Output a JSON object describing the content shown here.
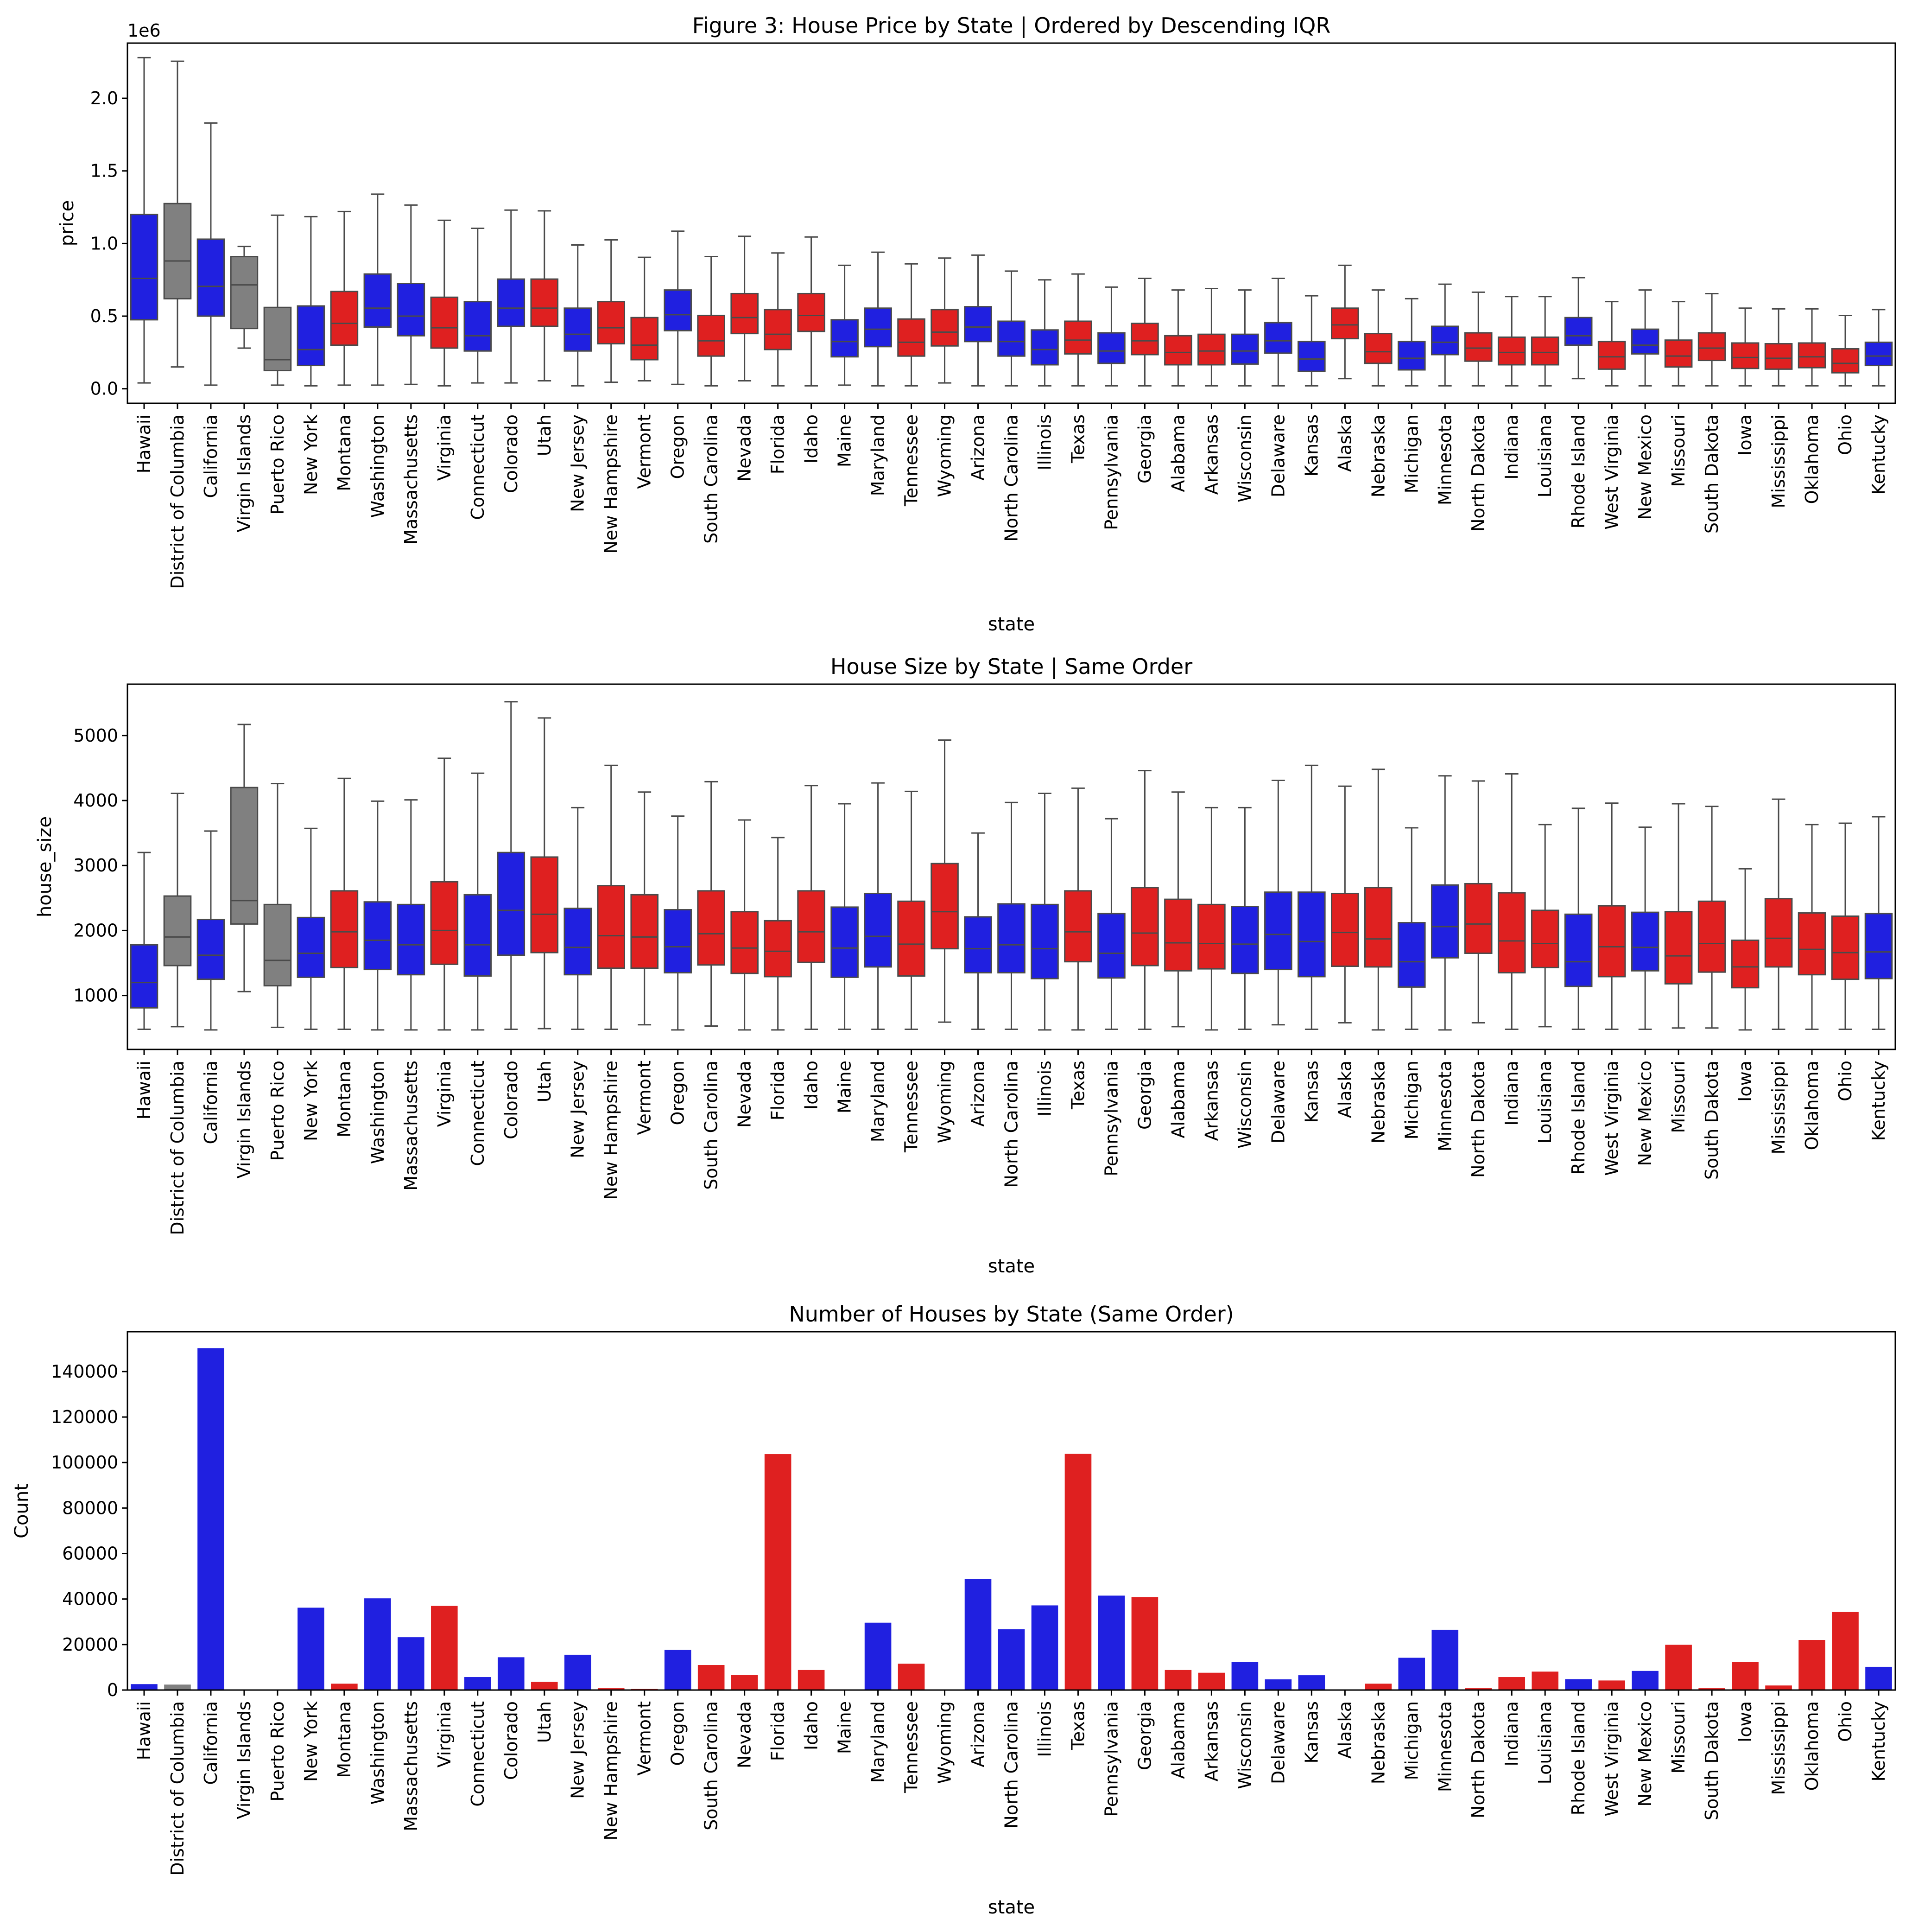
{
  "colors": {
    "blue": "#2020e0",
    "red": "#df2020",
    "gray": "#808080",
    "box_edge": "#4a4a4a"
  },
  "chart_data": [
    {
      "type": "box",
      "title": "Figure 3: House Price by State | Ordered by Descending IQR",
      "xlabel": "state",
      "ylabel": "price",
      "offset_label": "1e6",
      "ylim": [
        -100000,
        2380000
      ],
      "yticks": [
        0,
        500000,
        1000000,
        1500000,
        2000000
      ],
      "ytick_labels": [
        "0.0",
        "0.5",
        "1.0",
        "1.5",
        "2.0"
      ],
      "grid": false,
      "categories": [
        "Hawaii",
        "District of Columbia",
        "California",
        "Virgin Islands",
        "Puerto Rico",
        "New York",
        "Montana",
        "Washington",
        "Massachusetts",
        "Virginia",
        "Connecticut",
        "Colorado",
        "Utah",
        "New Jersey",
        "New Hampshire",
        "Vermont",
        "Oregon",
        "South Carolina",
        "Nevada",
        "Florida",
        "Idaho",
        "Maine",
        "Maryland",
        "Tennessee",
        "Wyoming",
        "Arizona",
        "North Carolina",
        "Illinois",
        "Texas",
        "Pennsylvania",
        "Georgia",
        "Alabama",
        "Arkansas",
        "Wisconsin",
        "Delaware",
        "Kansas",
        "Alaska",
        "Nebraska",
        "Michigan",
        "Minnesota",
        "North Dakota",
        "Indiana",
        "Louisiana",
        "Rhode Island",
        "West Virginia",
        "New Mexico",
        "Missouri",
        "South Dakota",
        "Iowa",
        "Mississippi",
        "Oklahoma",
        "Ohio",
        "Kentucky"
      ],
      "colors": [
        "blue",
        "gray",
        "blue",
        "gray",
        "gray",
        "blue",
        "red",
        "blue",
        "blue",
        "red",
        "blue",
        "blue",
        "red",
        "blue",
        "red",
        "red",
        "blue",
        "red",
        "red",
        "red",
        "red",
        "blue",
        "blue",
        "red",
        "red",
        "blue",
        "blue",
        "blue",
        "red",
        "blue",
        "red",
        "red",
        "red",
        "blue",
        "blue",
        "blue",
        "red",
        "red",
        "blue",
        "blue",
        "red",
        "red",
        "red",
        "blue",
        "red",
        "blue",
        "red",
        "red",
        "red",
        "red",
        "red",
        "red",
        "blue"
      ],
      "boxes": [
        {
          "wlo": 40000,
          "q1": 475000,
          "med": 760000,
          "q3": 1200000,
          "whi": 2280000
        },
        {
          "wlo": 150000,
          "q1": 620000,
          "med": 880000,
          "q3": 1275000,
          "whi": 2255000
        },
        {
          "wlo": 25000,
          "q1": 500000,
          "med": 705000,
          "q3": 1030000,
          "whi": 1830000
        },
        {
          "wlo": 280000,
          "q1": 415000,
          "med": 715000,
          "q3": 910000,
          "whi": 980000
        },
        {
          "wlo": 25000,
          "q1": 125000,
          "med": 200000,
          "q3": 560000,
          "whi": 1195000
        },
        {
          "wlo": 20000,
          "q1": 160000,
          "med": 270000,
          "q3": 570000,
          "whi": 1185000
        },
        {
          "wlo": 25000,
          "q1": 300000,
          "med": 450000,
          "q3": 670000,
          "whi": 1220000
        },
        {
          "wlo": 25000,
          "q1": 425000,
          "med": 555000,
          "q3": 790000,
          "whi": 1340000
        },
        {
          "wlo": 30000,
          "q1": 365000,
          "med": 500000,
          "q3": 725000,
          "whi": 1265000
        },
        {
          "wlo": 20000,
          "q1": 280000,
          "med": 420000,
          "q3": 630000,
          "whi": 1160000
        },
        {
          "wlo": 40000,
          "q1": 260000,
          "med": 365000,
          "q3": 600000,
          "whi": 1105000
        },
        {
          "wlo": 40000,
          "q1": 430000,
          "med": 555000,
          "q3": 755000,
          "whi": 1230000
        },
        {
          "wlo": 55000,
          "q1": 430000,
          "med": 555000,
          "q3": 755000,
          "whi": 1225000
        },
        {
          "wlo": 20000,
          "q1": 260000,
          "med": 375000,
          "q3": 555000,
          "whi": 990000
        },
        {
          "wlo": 45000,
          "q1": 310000,
          "med": 420000,
          "q3": 600000,
          "whi": 1025000
        },
        {
          "wlo": 55000,
          "q1": 200000,
          "med": 300000,
          "q3": 490000,
          "whi": 905000
        },
        {
          "wlo": 30000,
          "q1": 400000,
          "med": 510000,
          "q3": 680000,
          "whi": 1085000
        },
        {
          "wlo": 20000,
          "q1": 225000,
          "med": 330000,
          "q3": 505000,
          "whi": 910000
        },
        {
          "wlo": 55000,
          "q1": 380000,
          "med": 490000,
          "q3": 655000,
          "whi": 1050000
        },
        {
          "wlo": 20000,
          "q1": 270000,
          "med": 375000,
          "q3": 545000,
          "whi": 935000
        },
        {
          "wlo": 20000,
          "q1": 395000,
          "med": 505000,
          "q3": 655000,
          "whi": 1045000
        },
        {
          "wlo": 25000,
          "q1": 220000,
          "med": 325000,
          "q3": 475000,
          "whi": 850000
        },
        {
          "wlo": 20000,
          "q1": 290000,
          "med": 410000,
          "q3": 555000,
          "whi": 940000
        },
        {
          "wlo": 20000,
          "q1": 225000,
          "med": 320000,
          "q3": 480000,
          "whi": 860000
        },
        {
          "wlo": 40000,
          "q1": 295000,
          "med": 390000,
          "q3": 545000,
          "whi": 900000
        },
        {
          "wlo": 20000,
          "q1": 325000,
          "med": 425000,
          "q3": 565000,
          "whi": 920000
        },
        {
          "wlo": 20000,
          "q1": 225000,
          "med": 325000,
          "q3": 465000,
          "whi": 810000
        },
        {
          "wlo": 20000,
          "q1": 165000,
          "med": 270000,
          "q3": 405000,
          "whi": 750000
        },
        {
          "wlo": 20000,
          "q1": 240000,
          "med": 335000,
          "q3": 465000,
          "whi": 790000
        },
        {
          "wlo": 20000,
          "q1": 175000,
          "med": 260000,
          "q3": 385000,
          "whi": 700000
        },
        {
          "wlo": 20000,
          "q1": 235000,
          "med": 330000,
          "q3": 450000,
          "whi": 760000
        },
        {
          "wlo": 20000,
          "q1": 165000,
          "med": 250000,
          "q3": 365000,
          "whi": 680000
        },
        {
          "wlo": 20000,
          "q1": 165000,
          "med": 260000,
          "q3": 375000,
          "whi": 690000
        },
        {
          "wlo": 20000,
          "q1": 170000,
          "med": 260000,
          "q3": 375000,
          "whi": 680000
        },
        {
          "wlo": 20000,
          "q1": 245000,
          "med": 330000,
          "q3": 455000,
          "whi": 760000
        },
        {
          "wlo": 20000,
          "q1": 120000,
          "med": 205000,
          "q3": 325000,
          "whi": 640000
        },
        {
          "wlo": 70000,
          "q1": 345000,
          "med": 440000,
          "q3": 555000,
          "whi": 850000
        },
        {
          "wlo": 20000,
          "q1": 175000,
          "med": 255000,
          "q3": 380000,
          "whi": 680000
        },
        {
          "wlo": 20000,
          "q1": 130000,
          "med": 210000,
          "q3": 325000,
          "whi": 620000
        },
        {
          "wlo": 20000,
          "q1": 235000,
          "med": 320000,
          "q3": 430000,
          "whi": 720000
        },
        {
          "wlo": 20000,
          "q1": 190000,
          "med": 280000,
          "q3": 385000,
          "whi": 665000
        },
        {
          "wlo": 20000,
          "q1": 165000,
          "med": 250000,
          "q3": 355000,
          "whi": 635000
        },
        {
          "wlo": 20000,
          "q1": 165000,
          "med": 250000,
          "q3": 355000,
          "whi": 635000
        },
        {
          "wlo": 70000,
          "q1": 300000,
          "med": 365000,
          "q3": 490000,
          "whi": 765000
        },
        {
          "wlo": 20000,
          "q1": 135000,
          "med": 220000,
          "q3": 325000,
          "whi": 600000
        },
        {
          "wlo": 20000,
          "q1": 240000,
          "med": 300000,
          "q3": 410000,
          "whi": 680000
        },
        {
          "wlo": 20000,
          "q1": 150000,
          "med": 225000,
          "q3": 335000,
          "whi": 600000
        },
        {
          "wlo": 20000,
          "q1": 195000,
          "med": 280000,
          "q3": 385000,
          "whi": 655000
        },
        {
          "wlo": 20000,
          "q1": 140000,
          "med": 215000,
          "q3": 315000,
          "whi": 555000
        },
        {
          "wlo": 20000,
          "q1": 135000,
          "med": 210000,
          "q3": 310000,
          "whi": 550000
        },
        {
          "wlo": 20000,
          "q1": 145000,
          "med": 220000,
          "q3": 315000,
          "whi": 550000
        },
        {
          "wlo": 20000,
          "q1": 110000,
          "med": 175000,
          "q3": 275000,
          "whi": 505000
        },
        {
          "wlo": 20000,
          "q1": 160000,
          "med": 225000,
          "q3": 320000,
          "whi": 545000
        }
      ]
    },
    {
      "type": "box",
      "title": "House Size by State | Same Order",
      "xlabel": "state",
      "ylabel": "house_size",
      "ylim": [
        170,
        5790
      ],
      "yticks": [
        1000,
        2000,
        3000,
        4000,
        5000
      ],
      "ytick_labels": [
        "1000",
        "2000",
        "3000",
        "4000",
        "5000"
      ],
      "grid": false,
      "categories_ref": "same as Figure 3 order",
      "boxes": [
        {
          "wlo": 480,
          "q1": 810,
          "med": 1200,
          "q3": 1780,
          "whi": 3200
        },
        {
          "wlo": 520,
          "q1": 1460,
          "med": 1900,
          "q3": 2530,
          "whi": 4110
        },
        {
          "wlo": 470,
          "q1": 1250,
          "med": 1620,
          "q3": 2170,
          "whi": 3530
        },
        {
          "wlo": 1060,
          "q1": 2100,
          "med": 2460,
          "q3": 4200,
          "whi": 5170
        },
        {
          "wlo": 510,
          "q1": 1150,
          "med": 1540,
          "q3": 2400,
          "whi": 4260
        },
        {
          "wlo": 480,
          "q1": 1280,
          "med": 1650,
          "q3": 2200,
          "whi": 3570
        },
        {
          "wlo": 480,
          "q1": 1430,
          "med": 1980,
          "q3": 2610,
          "whi": 4340
        },
        {
          "wlo": 470,
          "q1": 1400,
          "med": 1850,
          "q3": 2440,
          "whi": 3990
        },
        {
          "wlo": 470,
          "q1": 1320,
          "med": 1780,
          "q3": 2400,
          "whi": 4010
        },
        {
          "wlo": 470,
          "q1": 1480,
          "med": 2000,
          "q3": 2750,
          "whi": 4650
        },
        {
          "wlo": 470,
          "q1": 1300,
          "med": 1780,
          "q3": 2550,
          "whi": 4420
        },
        {
          "wlo": 480,
          "q1": 1620,
          "med": 2310,
          "q3": 3200,
          "whi": 5520
        },
        {
          "wlo": 490,
          "q1": 1660,
          "med": 2250,
          "q3": 3130,
          "whi": 5270
        },
        {
          "wlo": 480,
          "q1": 1320,
          "med": 1740,
          "q3": 2340,
          "whi": 3890
        },
        {
          "wlo": 480,
          "q1": 1420,
          "med": 1920,
          "q3": 2690,
          "whi": 4540
        },
        {
          "wlo": 550,
          "q1": 1420,
          "med": 1900,
          "q3": 2550,
          "whi": 4130
        },
        {
          "wlo": 470,
          "q1": 1350,
          "med": 1750,
          "q3": 2320,
          "whi": 3760
        },
        {
          "wlo": 530,
          "q1": 1470,
          "med": 1950,
          "q3": 2610,
          "whi": 4290
        },
        {
          "wlo": 470,
          "q1": 1340,
          "med": 1730,
          "q3": 2290,
          "whi": 3700
        },
        {
          "wlo": 470,
          "q1": 1290,
          "med": 1680,
          "q3": 2150,
          "whi": 3430
        },
        {
          "wlo": 480,
          "q1": 1510,
          "med": 1980,
          "q3": 2610,
          "whi": 4230
        },
        {
          "wlo": 480,
          "q1": 1280,
          "med": 1730,
          "q3": 2360,
          "whi": 3950
        },
        {
          "wlo": 480,
          "q1": 1440,
          "med": 1910,
          "q3": 2570,
          "whi": 4270
        },
        {
          "wlo": 480,
          "q1": 1300,
          "med": 1790,
          "q3": 2450,
          "whi": 4140
        },
        {
          "wlo": 590,
          "q1": 1720,
          "med": 2290,
          "q3": 3030,
          "whi": 4930
        },
        {
          "wlo": 480,
          "q1": 1350,
          "med": 1720,
          "q3": 2210,
          "whi": 3500
        },
        {
          "wlo": 480,
          "q1": 1350,
          "med": 1780,
          "q3": 2410,
          "whi": 3970
        },
        {
          "wlo": 470,
          "q1": 1260,
          "med": 1720,
          "q3": 2400,
          "whi": 4110
        },
        {
          "wlo": 470,
          "q1": 1520,
          "med": 1980,
          "q3": 2610,
          "whi": 4190
        },
        {
          "wlo": 480,
          "q1": 1270,
          "med": 1650,
          "q3": 2260,
          "whi": 3720
        },
        {
          "wlo": 480,
          "q1": 1460,
          "med": 1960,
          "q3": 2660,
          "whi": 4460
        },
        {
          "wlo": 520,
          "q1": 1380,
          "med": 1810,
          "q3": 2480,
          "whi": 4130
        },
        {
          "wlo": 470,
          "q1": 1410,
          "med": 1800,
          "q3": 2400,
          "whi": 3890
        },
        {
          "wlo": 480,
          "q1": 1340,
          "med": 1790,
          "q3": 2370,
          "whi": 3890
        },
        {
          "wlo": 550,
          "q1": 1400,
          "med": 1940,
          "q3": 2590,
          "whi": 4310
        },
        {
          "wlo": 480,
          "q1": 1290,
          "med": 1830,
          "q3": 2590,
          "whi": 4540
        },
        {
          "wlo": 580,
          "q1": 1450,
          "med": 1970,
          "q3": 2570,
          "whi": 4220
        },
        {
          "wlo": 470,
          "q1": 1440,
          "med": 1870,
          "q3": 2660,
          "whi": 4480
        },
        {
          "wlo": 480,
          "q1": 1130,
          "med": 1520,
          "q3": 2120,
          "whi": 3580
        },
        {
          "wlo": 470,
          "q1": 1580,
          "med": 2060,
          "q3": 2700,
          "whi": 4380
        },
        {
          "wlo": 580,
          "q1": 1650,
          "med": 2100,
          "q3": 2720,
          "whi": 4300
        },
        {
          "wlo": 480,
          "q1": 1350,
          "med": 1840,
          "q3": 2580,
          "whi": 4410
        },
        {
          "wlo": 520,
          "q1": 1430,
          "med": 1800,
          "q3": 2310,
          "whi": 3630
        },
        {
          "wlo": 480,
          "q1": 1140,
          "med": 1520,
          "q3": 2250,
          "whi": 3880
        },
        {
          "wlo": 480,
          "q1": 1290,
          "med": 1750,
          "q3": 2380,
          "whi": 3960
        },
        {
          "wlo": 480,
          "q1": 1380,
          "med": 1740,
          "q3": 2280,
          "whi": 3590
        },
        {
          "wlo": 500,
          "q1": 1180,
          "med": 1610,
          "q3": 2290,
          "whi": 3950
        },
        {
          "wlo": 500,
          "q1": 1360,
          "med": 1800,
          "q3": 2450,
          "whi": 3910
        },
        {
          "wlo": 470,
          "q1": 1120,
          "med": 1440,
          "q3": 1850,
          "whi": 2950
        },
        {
          "wlo": 480,
          "q1": 1440,
          "med": 1880,
          "q3": 2490,
          "whi": 4020
        },
        {
          "wlo": 480,
          "q1": 1320,
          "med": 1710,
          "q3": 2270,
          "whi": 3630
        },
        {
          "wlo": 480,
          "q1": 1250,
          "med": 1660,
          "q3": 2220,
          "whi": 3650
        },
        {
          "wlo": 480,
          "q1": 1260,
          "med": 1670,
          "q3": 2260,
          "whi": 3750
        }
      ]
    },
    {
      "type": "bar",
      "title": "Number of Houses by State (Same Order)",
      "xlabel": "state",
      "ylabel": "Count",
      "ylim": [
        0,
        157500
      ],
      "yticks": [
        0,
        20000,
        40000,
        60000,
        80000,
        100000,
        120000,
        140000
      ],
      "ytick_labels": [
        "0",
        "20000",
        "40000",
        "60000",
        "80000",
        "100000",
        "120000",
        "140000"
      ],
      "grid": false,
      "categories_ref": "same as Figure 3 order",
      "values": [
        2600,
        2400,
        150300,
        40,
        250,
        36200,
        2800,
        40300,
        23200,
        37000,
        5700,
        14400,
        3600,
        15500,
        800,
        450,
        17700,
        11000,
        6600,
        103700,
        8800,
        200,
        29600,
        11600,
        250,
        48900,
        26700,
        37200,
        103800,
        41500,
        40900,
        8800,
        7600,
        12300,
        4700,
        6500,
        250,
        2800,
        14200,
        26500,
        800,
        5700,
        8100,
        4800,
        4200,
        8400,
        19900,
        800,
        12300,
        2000,
        22000,
        34300,
        10200
      ]
    }
  ]
}
